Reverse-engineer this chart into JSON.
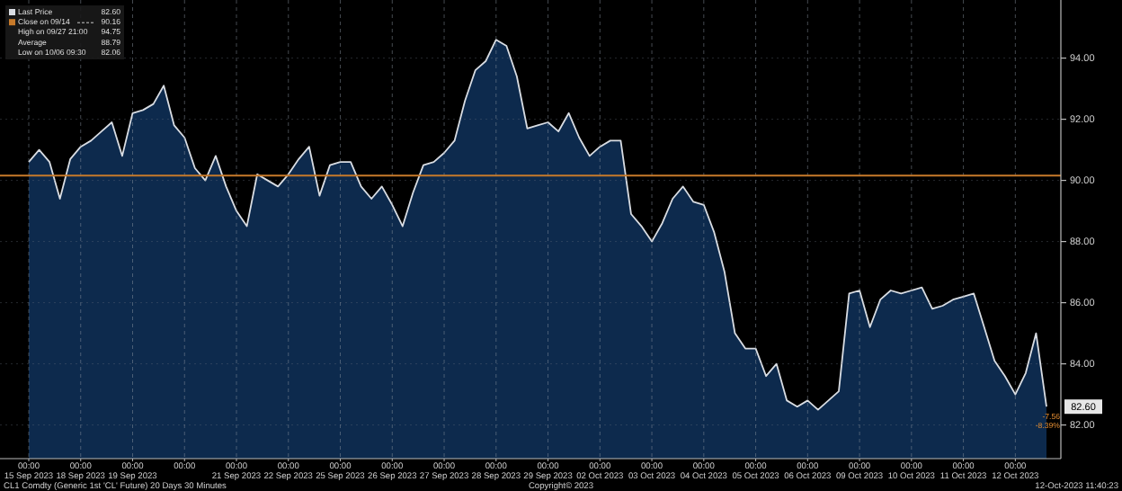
{
  "chart_data": {
    "type": "area",
    "categories": [
      "00:00\n15 Sep 2023",
      null,
      null,
      null,
      null,
      "00:00\n18 Sep 2023",
      null,
      null,
      null,
      null,
      "00:00\n19 Sep 2023",
      null,
      null,
      null,
      null,
      "00:00",
      null,
      null,
      null,
      null,
      "00:00\n21 Sep 2023",
      null,
      null,
      null,
      null,
      "00:00\n22 Sep 2023",
      null,
      null,
      null,
      null,
      "00:00\n25 Sep 2023",
      null,
      null,
      null,
      null,
      "00:00\n26 Sep 2023",
      null,
      null,
      null,
      null,
      "00:00\n27 Sep 2023",
      null,
      null,
      null,
      null,
      "00:00\n28 Sep 2023",
      null,
      null,
      null,
      null,
      "00:00\n29 Sep 2023",
      null,
      null,
      null,
      null,
      "00:00\n02 Oct 2023",
      null,
      null,
      null,
      null,
      "00:00\n03 Oct 2023",
      null,
      null,
      null,
      null,
      "00:00\n04 Oct 2023",
      null,
      null,
      null,
      null,
      "00:00\n05 Oct 2023",
      null,
      null,
      null,
      null,
      "00:00\n06 Oct 2023",
      null,
      null,
      null,
      null,
      "00:00\n09 Oct 2023",
      null,
      null,
      null,
      null,
      "00:00\n10 Oct 2023",
      null,
      null,
      null,
      null,
      "00:00\n11 Oct 2023",
      null,
      null,
      null,
      null,
      "00:00\n12 Oct 2023",
      null,
      null,
      null
    ],
    "series": [
      {
        "name": "Last Price",
        "color": "#d9dde3",
        "values": [
          90.6,
          91.0,
          90.6,
          89.4,
          90.7,
          91.1,
          91.3,
          91.6,
          91.9,
          90.8,
          92.2,
          92.3,
          92.5,
          93.1,
          91.8,
          91.4,
          90.4,
          90.0,
          90.8,
          89.8,
          89.0,
          88.5,
          90.2,
          90.0,
          89.8,
          90.2,
          90.7,
          91.1,
          89.5,
          90.5,
          90.6,
          90.6,
          89.8,
          89.4,
          89.8,
          89.2,
          88.5,
          89.6,
          90.5,
          90.6,
          90.9,
          91.3,
          92.6,
          93.6,
          93.9,
          94.6,
          94.4,
          93.4,
          91.7,
          91.8,
          91.9,
          91.6,
          92.2,
          91.4,
          90.8,
          91.1,
          91.3,
          91.3,
          88.9,
          88.5,
          88.0,
          88.6,
          89.4,
          89.8,
          89.3,
          89.2,
          88.3,
          87.0,
          85.0,
          84.5,
          84.5,
          83.6,
          84.0,
          82.8,
          82.6,
          82.8,
          82.5,
          82.8,
          83.1,
          86.3,
          86.4,
          85.2,
          86.1,
          86.4,
          86.3,
          86.4,
          86.5,
          85.8,
          85.9,
          86.1,
          86.2,
          86.3,
          85.2,
          84.1,
          83.6,
          83.0,
          83.7,
          85.0,
          82.6
        ]
      }
    ],
    "ylim": [
      80.9,
      95.9
    ],
    "yticks": [
      {
        "value": 82,
        "label": "82.00"
      },
      {
        "value": 84,
        "label": "84.00"
      },
      {
        "value": 86,
        "label": "86.00"
      },
      {
        "value": 88,
        "label": "88.00"
      },
      {
        "value": 90,
        "label": "90.00"
      },
      {
        "value": 92,
        "label": "92.00"
      },
      {
        "value": 94,
        "label": "94.00"
      }
    ],
    "ref_lines": [
      {
        "axis": "y",
        "value": 90.16,
        "label": "Close on 09/14",
        "color": "#c77a2a"
      }
    ],
    "grid": true,
    "legend": "top left",
    "annotations": [
      "82.60",
      "90.16",
      "High on 09/27 21:00",
      "94.75",
      "Average",
      "88.79",
      "Low on 10/06 09:30",
      "82.06",
      "CL1 Comdty (Generic 1st 'CL' Future) 20 Days 30 Minutes",
      "Copyright© 2023",
      "12-Oct-2023 11:40:23",
      "-7.56",
      "-8.39%"
    ]
  }
}
